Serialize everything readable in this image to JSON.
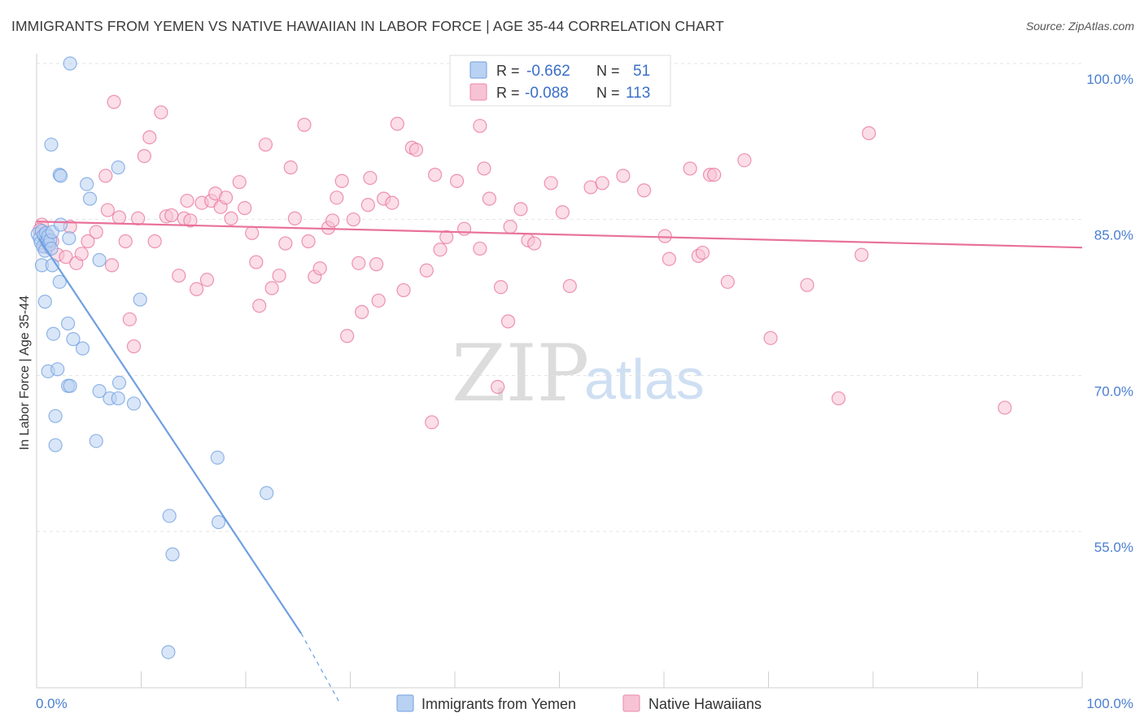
{
  "title": "IMMIGRANTS FROM YEMEN VS NATIVE HAWAIIAN IN LABOR FORCE | AGE 35-44 CORRELATION CHART",
  "source": "Source: ZipAtlas.com",
  "watermark": {
    "zip": "ZIP",
    "atlas": "atlas"
  },
  "legend_top": [
    {
      "r_label": "R =",
      "r_value": "-0.662",
      "n_label": "N =",
      "n_value": "51",
      "fill": "#b9d2f3",
      "stroke": "#6f9fe0"
    },
    {
      "r_label": "R =",
      "r_value": "-0.088",
      "n_label": "N =",
      "n_value": "113",
      "fill": "#f7c3d4",
      "stroke": "#e88aa8"
    }
  ],
  "chart_data": {
    "type": "scatter",
    "title": "IMMIGRANTS FROM YEMEN VS NATIVE HAWAIIAN IN LABOR FORCE | AGE 35-44 CORRELATION CHART",
    "xlabel": "",
    "ylabel": "In Labor Force | Age 35-44",
    "xlim": [
      0,
      100
    ],
    "ylim": [
      40,
      102
    ],
    "x_tick_labels": [
      "0.0%",
      "100.0%"
    ],
    "y_ticks": [
      55,
      70,
      85,
      100
    ],
    "y_tick_labels": [
      "55.0%",
      "70.0%",
      "85.0%",
      "100.0%"
    ],
    "grid": true,
    "legend_position": "top-center",
    "series": [
      {
        "name": "Immigrants from Yemen",
        "color": "#6f9fe0",
        "fill": "#b9d2f3",
        "trend": {
          "x": [
            0.2,
            25.3
          ],
          "y": [
            83.2,
            45.2
          ],
          "dashed_to": [
            29.0,
            38.5
          ]
        },
        "points": [
          [
            0.1,
            83.6
          ],
          [
            0.3,
            83.2
          ],
          [
            0.4,
            82.8
          ],
          [
            0.5,
            83.9
          ],
          [
            0.6,
            82.4
          ],
          [
            0.7,
            83.5
          ],
          [
            0.8,
            82.0
          ],
          [
            0.9,
            83.7
          ],
          [
            1.0,
            82.9
          ],
          [
            1.1,
            83.4
          ],
          [
            1.2,
            82.6
          ],
          [
            1.3,
            83.0
          ],
          [
            1.4,
            82.2
          ],
          [
            1.5,
            83.8
          ],
          [
            0.5,
            80.6
          ],
          [
            1.5,
            80.6
          ],
          [
            0.8,
            77.1
          ],
          [
            1.6,
            74.0
          ],
          [
            1.1,
            70.4
          ],
          [
            2.0,
            70.6
          ],
          [
            1.8,
            66.1
          ],
          [
            1.8,
            63.3
          ],
          [
            1.4,
            92.2
          ],
          [
            2.2,
            89.3
          ],
          [
            2.3,
            89.2
          ],
          [
            2.2,
            79.0
          ],
          [
            2.3,
            84.5
          ],
          [
            3.0,
            75.0
          ],
          [
            3.0,
            69.0
          ],
          [
            3.2,
            69.0
          ],
          [
            3.5,
            73.5
          ],
          [
            4.4,
            72.6
          ],
          [
            4.8,
            88.4
          ],
          [
            5.1,
            87.0
          ],
          [
            6.0,
            81.1
          ],
          [
            6.0,
            68.5
          ],
          [
            5.7,
            63.7
          ],
          [
            7.0,
            67.8
          ],
          [
            7.8,
            67.8
          ],
          [
            7.9,
            69.3
          ],
          [
            9.3,
            67.3
          ],
          [
            9.9,
            77.3
          ],
          [
            7.8,
            90.0
          ],
          [
            3.2,
            100.0
          ],
          [
            12.7,
            56.5
          ],
          [
            13.0,
            52.8
          ],
          [
            12.6,
            43.4
          ],
          [
            17.3,
            62.1
          ],
          [
            17.4,
            55.9
          ],
          [
            22.0,
            58.7
          ],
          [
            3.1,
            83.2
          ]
        ]
      },
      {
        "name": "Native Hawaiians",
        "color": "#e8719a",
        "fill": "#f7c3d4",
        "trend": {
          "x": [
            0.0,
            100.0
          ],
          "y": [
            84.8,
            82.3
          ]
        },
        "points": [
          [
            0.5,
            84.5
          ],
          [
            1.0,
            83.1
          ],
          [
            1.5,
            82.9
          ],
          [
            2.0,
            81.6
          ],
          [
            2.8,
            81.4
          ],
          [
            3.2,
            84.3
          ],
          [
            3.8,
            80.8
          ],
          [
            4.3,
            81.7
          ],
          [
            4.9,
            82.9
          ],
          [
            5.7,
            83.8
          ],
          [
            6.6,
            89.2
          ],
          [
            6.8,
            85.9
          ],
          [
            7.2,
            80.6
          ],
          [
            7.4,
            96.3
          ],
          [
            7.9,
            85.2
          ],
          [
            8.5,
            82.9
          ],
          [
            8.9,
            75.4
          ],
          [
            9.3,
            72.8
          ],
          [
            9.7,
            85.1
          ],
          [
            10.3,
            91.1
          ],
          [
            10.8,
            92.9
          ],
          [
            11.3,
            82.9
          ],
          [
            11.9,
            95.3
          ],
          [
            12.4,
            85.3
          ],
          [
            12.9,
            85.4
          ],
          [
            13.6,
            79.6
          ],
          [
            14.1,
            85.1
          ],
          [
            14.4,
            86.8
          ],
          [
            14.7,
            84.9
          ],
          [
            15.3,
            78.3
          ],
          [
            15.8,
            86.6
          ],
          [
            16.3,
            79.2
          ],
          [
            16.7,
            86.8
          ],
          [
            17.1,
            87.5
          ],
          [
            17.6,
            86.2
          ],
          [
            18.1,
            87.1
          ],
          [
            18.6,
            85.1
          ],
          [
            19.4,
            88.6
          ],
          [
            19.9,
            86.1
          ],
          [
            20.6,
            83.7
          ],
          [
            21.0,
            80.9
          ],
          [
            21.3,
            76.7
          ],
          [
            21.9,
            92.2
          ],
          [
            22.5,
            78.4
          ],
          [
            23.2,
            79.6
          ],
          [
            23.8,
            82.7
          ],
          [
            24.3,
            90.0
          ],
          [
            24.7,
            85.1
          ],
          [
            25.6,
            94.1
          ],
          [
            26.0,
            82.9
          ],
          [
            26.6,
            79.5
          ],
          [
            27.1,
            80.3
          ],
          [
            27.9,
            84.2
          ],
          [
            28.3,
            84.9
          ],
          [
            28.7,
            87.1
          ],
          [
            29.2,
            88.7
          ],
          [
            29.7,
            73.8
          ],
          [
            30.3,
            85.0
          ],
          [
            30.8,
            80.8
          ],
          [
            31.1,
            76.1
          ],
          [
            31.7,
            86.4
          ],
          [
            31.9,
            89.0
          ],
          [
            32.5,
            80.7
          ],
          [
            32.7,
            77.2
          ],
          [
            33.2,
            87.0
          ],
          [
            34.0,
            86.6
          ],
          [
            34.5,
            94.2
          ],
          [
            35.1,
            78.2
          ],
          [
            35.9,
            91.9
          ],
          [
            36.3,
            91.7
          ],
          [
            37.3,
            80.1
          ],
          [
            37.8,
            65.5
          ],
          [
            38.1,
            89.3
          ],
          [
            38.6,
            82.1
          ],
          [
            39.2,
            83.3
          ],
          [
            40.2,
            88.7
          ],
          [
            40.9,
            84.1
          ],
          [
            42.4,
            94.0
          ],
          [
            42.4,
            82.2
          ],
          [
            42.8,
            89.9
          ],
          [
            43.3,
            87.0
          ],
          [
            44.1,
            68.9
          ],
          [
            44.4,
            78.5
          ],
          [
            45.1,
            75.2
          ],
          [
            45.3,
            84.3
          ],
          [
            46.3,
            86.0
          ],
          [
            47.0,
            83.0
          ],
          [
            47.6,
            82.7
          ],
          [
            49.2,
            88.5
          ],
          [
            50.3,
            85.7
          ],
          [
            51.0,
            78.6
          ],
          [
            53.0,
            88.1
          ],
          [
            54.1,
            88.5
          ],
          [
            56.1,
            89.2
          ],
          [
            58.1,
            87.8
          ],
          [
            60.1,
            83.4
          ],
          [
            60.5,
            81.2
          ],
          [
            62.5,
            89.9
          ],
          [
            63.3,
            81.5
          ],
          [
            63.7,
            81.8
          ],
          [
            64.4,
            89.3
          ],
          [
            64.8,
            89.3
          ],
          [
            66.1,
            79.0
          ],
          [
            67.7,
            90.7
          ],
          [
            70.2,
            73.6
          ],
          [
            73.7,
            78.7
          ],
          [
            76.7,
            67.8
          ],
          [
            78.9,
            81.6
          ],
          [
            79.6,
            93.3
          ],
          [
            92.6,
            66.9
          ],
          [
            59.1,
            100.0
          ],
          [
            0.3,
            84.0
          ],
          [
            0.8,
            82.4
          ]
        ]
      }
    ]
  },
  "bottom_legend": [
    {
      "label": "Immigrants from Yemen",
      "fill": "#b9d2f3",
      "stroke": "#6f9fe0"
    },
    {
      "label": "Native Hawaiians",
      "fill": "#f7c3d4",
      "stroke": "#e88aa8"
    }
  ]
}
